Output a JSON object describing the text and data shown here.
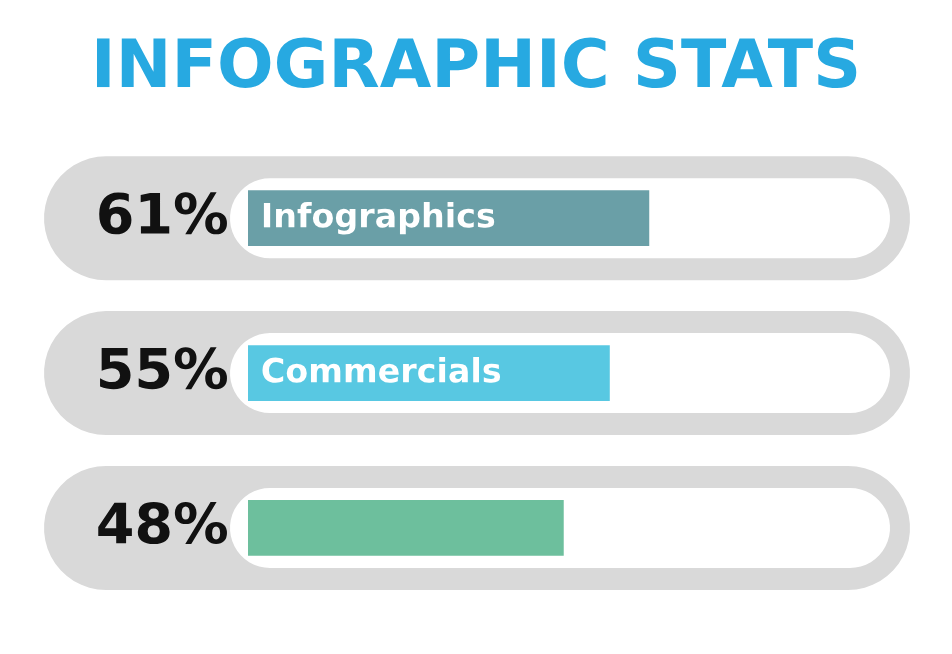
{
  "chart_data": {
    "type": "bar",
    "orientation": "horizontal",
    "title": "INFOGRAPHIC STATS",
    "categories": [
      "Infographics",
      "Commercials",
      null
    ],
    "values": [
      61,
      55,
      48
    ],
    "colors": [
      "#6a9fa7",
      "#58c8e2",
      "#6dbf9d"
    ],
    "value_labels": [
      "61%",
      "55%",
      "48%"
    ]
  }
}
